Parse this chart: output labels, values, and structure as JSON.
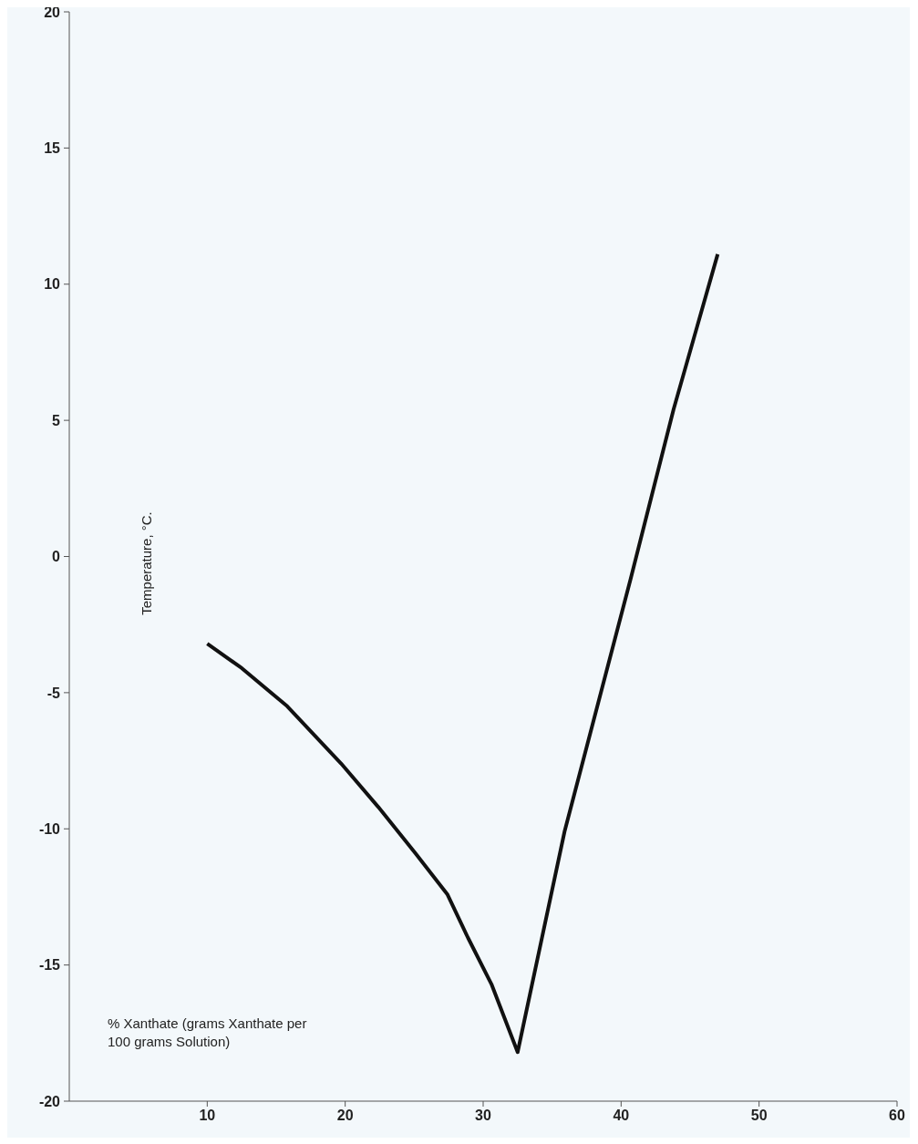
{
  "chart_data": {
    "type": "line",
    "xlabel": "% Xanthate (grams Xanthate per 100 grams Solution)",
    "ylabel": "Temperature, °C.",
    "x": [
      10,
      12.5,
      15.8,
      19.7,
      22.4,
      25.1,
      27.4,
      28.9,
      30.6,
      32.5,
      35.9,
      40.7,
      43.8,
      47.0
    ],
    "series": [
      {
        "color": "#111111",
        "values": [
          -3.2,
          -4.1,
          -5.5,
          -7.6,
          -9.2,
          -10.9,
          -12.4,
          -14.0,
          -15.7,
          -18.2,
          -10.1,
          -0.8,
          5.4,
          11.1
        ]
      }
    ],
    "xlim": [
      0,
      60
    ],
    "xticks": [
      10,
      20,
      30,
      40,
      50,
      60
    ],
    "ylim": [
      -20,
      20
    ],
    "yticks": [
      -20,
      -15,
      -10,
      -5,
      0,
      5,
      10,
      15,
      20
    ],
    "grid": false,
    "legend": false,
    "marker": "none",
    "line_style": "solid"
  }
}
